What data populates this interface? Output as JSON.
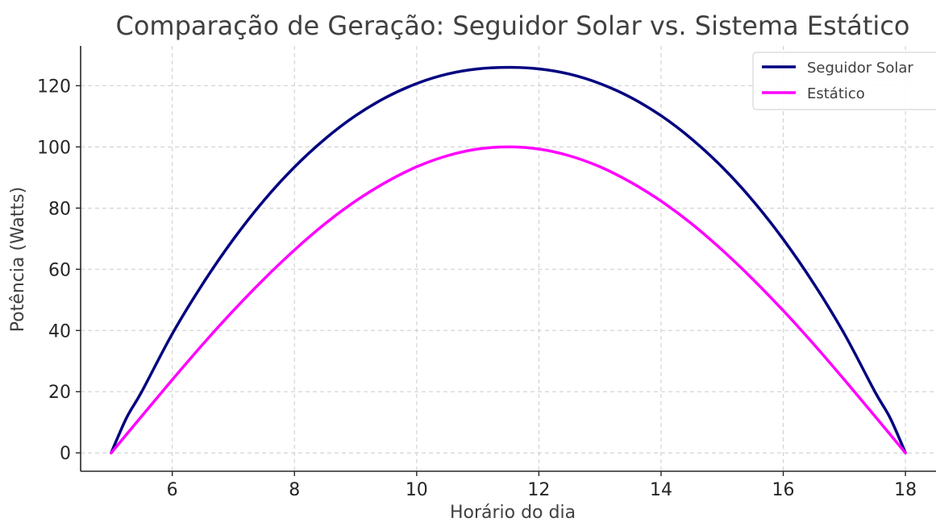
{
  "chart_data": {
    "type": "line",
    "title": "Comparação de Geração: Seguidor Solar vs. Sistema Estático",
    "xlabel": "Horário do dia",
    "ylabel": "Potência (Watts)",
    "xlim": [
      4.5,
      18.5
    ],
    "ylim": [
      -6,
      133
    ],
    "xticks": [
      6,
      8,
      10,
      12,
      14,
      16,
      18
    ],
    "yticks": [
      0,
      20,
      40,
      60,
      80,
      100,
      120
    ],
    "grid": true,
    "legend_position": "top-right",
    "x": [
      5.0,
      5.25,
      5.5,
      6.0,
      6.5,
      7.0,
      7.5,
      8.0,
      8.5,
      9.0,
      9.5,
      10.0,
      10.5,
      11.0,
      11.5,
      12.0,
      12.5,
      13.0,
      13.5,
      14.0,
      14.5,
      15.0,
      15.5,
      16.0,
      16.5,
      17.0,
      17.5,
      17.75,
      18.0
    ],
    "series": [
      {
        "name": "Seguidor Solar",
        "color": "#000080",
        "values": [
          0.0,
          11.4,
          20.0,
          38.9,
          55.3,
          69.8,
          82.5,
          93.4,
          102.6,
          110.2,
          116.2,
          120.7,
          123.8,
          125.5,
          126.0,
          125.5,
          123.8,
          120.7,
          116.2,
          110.2,
          102.6,
          93.4,
          82.5,
          69.8,
          55.3,
          38.9,
          20.0,
          11.4,
          0.0
        ]
      },
      {
        "name": "Estático",
        "color": "#ff00ff",
        "values": [
          0.0,
          6.0,
          12.0,
          23.9,
          35.5,
          46.5,
          56.8,
          66.3,
          74.9,
          82.3,
          88.5,
          93.5,
          97.1,
          99.3,
          100.0,
          99.3,
          97.1,
          93.5,
          88.5,
          82.3,
          74.9,
          66.3,
          56.8,
          46.5,
          35.5,
          23.9,
          12.0,
          6.0,
          0.0
        ]
      }
    ]
  }
}
